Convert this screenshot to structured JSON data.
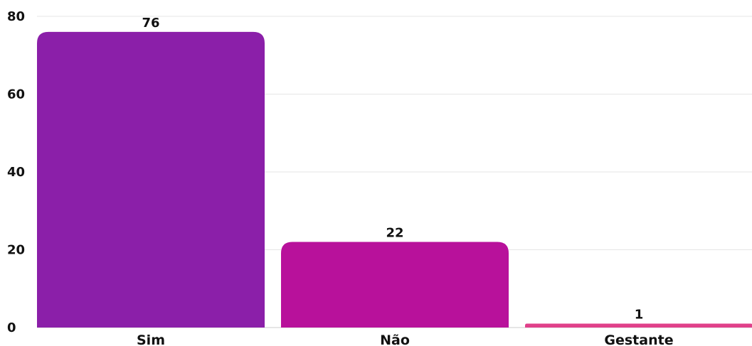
{
  "chart_data": {
    "type": "bar",
    "title": "",
    "xlabel": "",
    "ylabel": "",
    "categories": [
      "Sim",
      "Não",
      "Gestante"
    ],
    "values": [
      76,
      22,
      1
    ],
    "colors": [
      "#8b1fa9",
      "#b8119b",
      "#e0408a"
    ],
    "ylim": [
      0,
      80
    ],
    "yticks": [
      0,
      20,
      40,
      60,
      80
    ],
    "grid": true,
    "legend": "none",
    "data_labels": true
  }
}
